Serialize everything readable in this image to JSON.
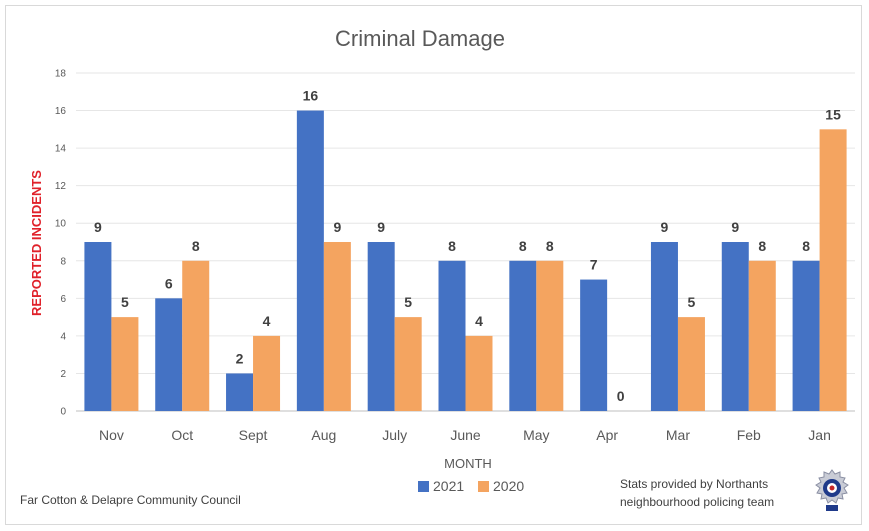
{
  "chart_data": {
    "type": "bar",
    "title": "Criminal Damage",
    "xlabel": "MONTH",
    "ylabel": "REPORTED INCIDENTS",
    "categories": [
      "Nov",
      "Oct",
      "Sept",
      "Aug",
      "July",
      "June",
      "May",
      "Apr",
      "Mar",
      "Feb",
      "Jan"
    ],
    "series": [
      {
        "name": "2021",
        "color": "#4472c4",
        "values": [
          9,
          6,
          2,
          16,
          9,
          8,
          8,
          7,
          9,
          9,
          8
        ]
      },
      {
        "name": "2020",
        "color": "#f4a460",
        "values": [
          5,
          8,
          4,
          9,
          5,
          4,
          8,
          0,
          5,
          8,
          15
        ]
      }
    ],
    "ylim": [
      0,
      18
    ],
    "yticks": [
      0,
      2,
      4,
      6,
      8,
      10,
      12,
      14,
      16,
      18
    ],
    "grid": true,
    "legend": "bottom"
  },
  "footer": {
    "left_credit": "Far Cotton & Delapre Community Council",
    "right_credit_line1": "Stats provided by Northants",
    "right_credit_line2": "neighbourhood policing team",
    "badge_icon": "police-crest-icon"
  }
}
